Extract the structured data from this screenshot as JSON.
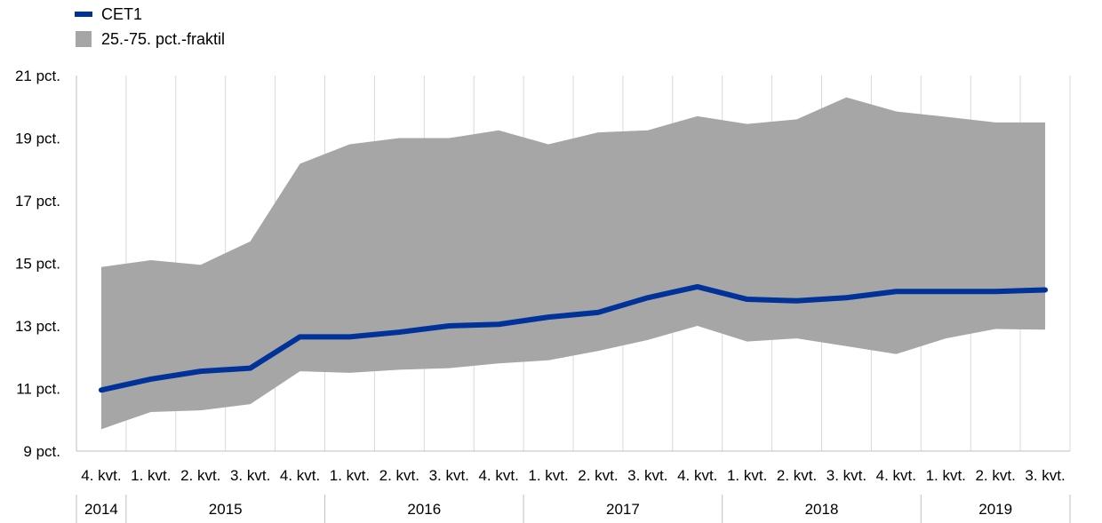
{
  "chart_data": {
    "type": "area",
    "x_quarters": [
      "4. kvt.",
      "1. kvt.",
      "2. kvt.",
      "3. kvt.",
      "4. kvt.",
      "1. kvt.",
      "2. kvt.",
      "3. kvt.",
      "4. kvt.",
      "1. kvt.",
      "2. kvt.",
      "3. kvt.",
      "4. kvt.",
      "1. kvt.",
      "2. kvt.",
      "3. kvt.",
      "4. kvt.",
      "1. kvt.",
      "2. kvt.",
      "3. kvt."
    ],
    "x_years": [
      {
        "label": "2014",
        "count": 1
      },
      {
        "label": "2015",
        "count": 4
      },
      {
        "label": "2016",
        "count": 4
      },
      {
        "label": "2017",
        "count": 4
      },
      {
        "label": "2018",
        "count": 4
      },
      {
        "label": "2019",
        "count": 3
      }
    ],
    "y_ticks": [
      "9 pct.",
      "11 pct.",
      "13 pct.",
      "15 pct.",
      "17 pct.",
      "19 pct.",
      "21 pct."
    ],
    "ylim": [
      9,
      21
    ],
    "series": [
      {
        "name": "CET1",
        "kind": "line",
        "color": "#003299",
        "values": [
          10.95,
          11.3,
          11.55,
          11.65,
          12.65,
          12.65,
          12.8,
          13.0,
          13.05,
          13.28,
          13.43,
          13.9,
          14.25,
          13.85,
          13.8,
          13.9,
          14.1,
          14.1,
          14.1,
          14.15
        ]
      },
      {
        "name": "25.-75. pct.-fraktil",
        "kind": "band",
        "color": "#a6a6a6",
        "lower": [
          9.7,
          10.25,
          10.3,
          10.5,
          11.55,
          11.5,
          11.6,
          11.65,
          11.8,
          11.9,
          12.2,
          12.55,
          13.0,
          12.5,
          12.6,
          12.35,
          12.1,
          12.6,
          12.9,
          12.88
        ],
        "upper": [
          14.88,
          15.1,
          14.95,
          15.7,
          18.18,
          18.8,
          19.0,
          19.0,
          19.25,
          18.8,
          19.18,
          19.25,
          19.7,
          19.45,
          19.6,
          20.3,
          19.85,
          19.68,
          19.5,
          19.5
        ]
      }
    ],
    "grid": "vertical",
    "legend_position": "top-left"
  }
}
